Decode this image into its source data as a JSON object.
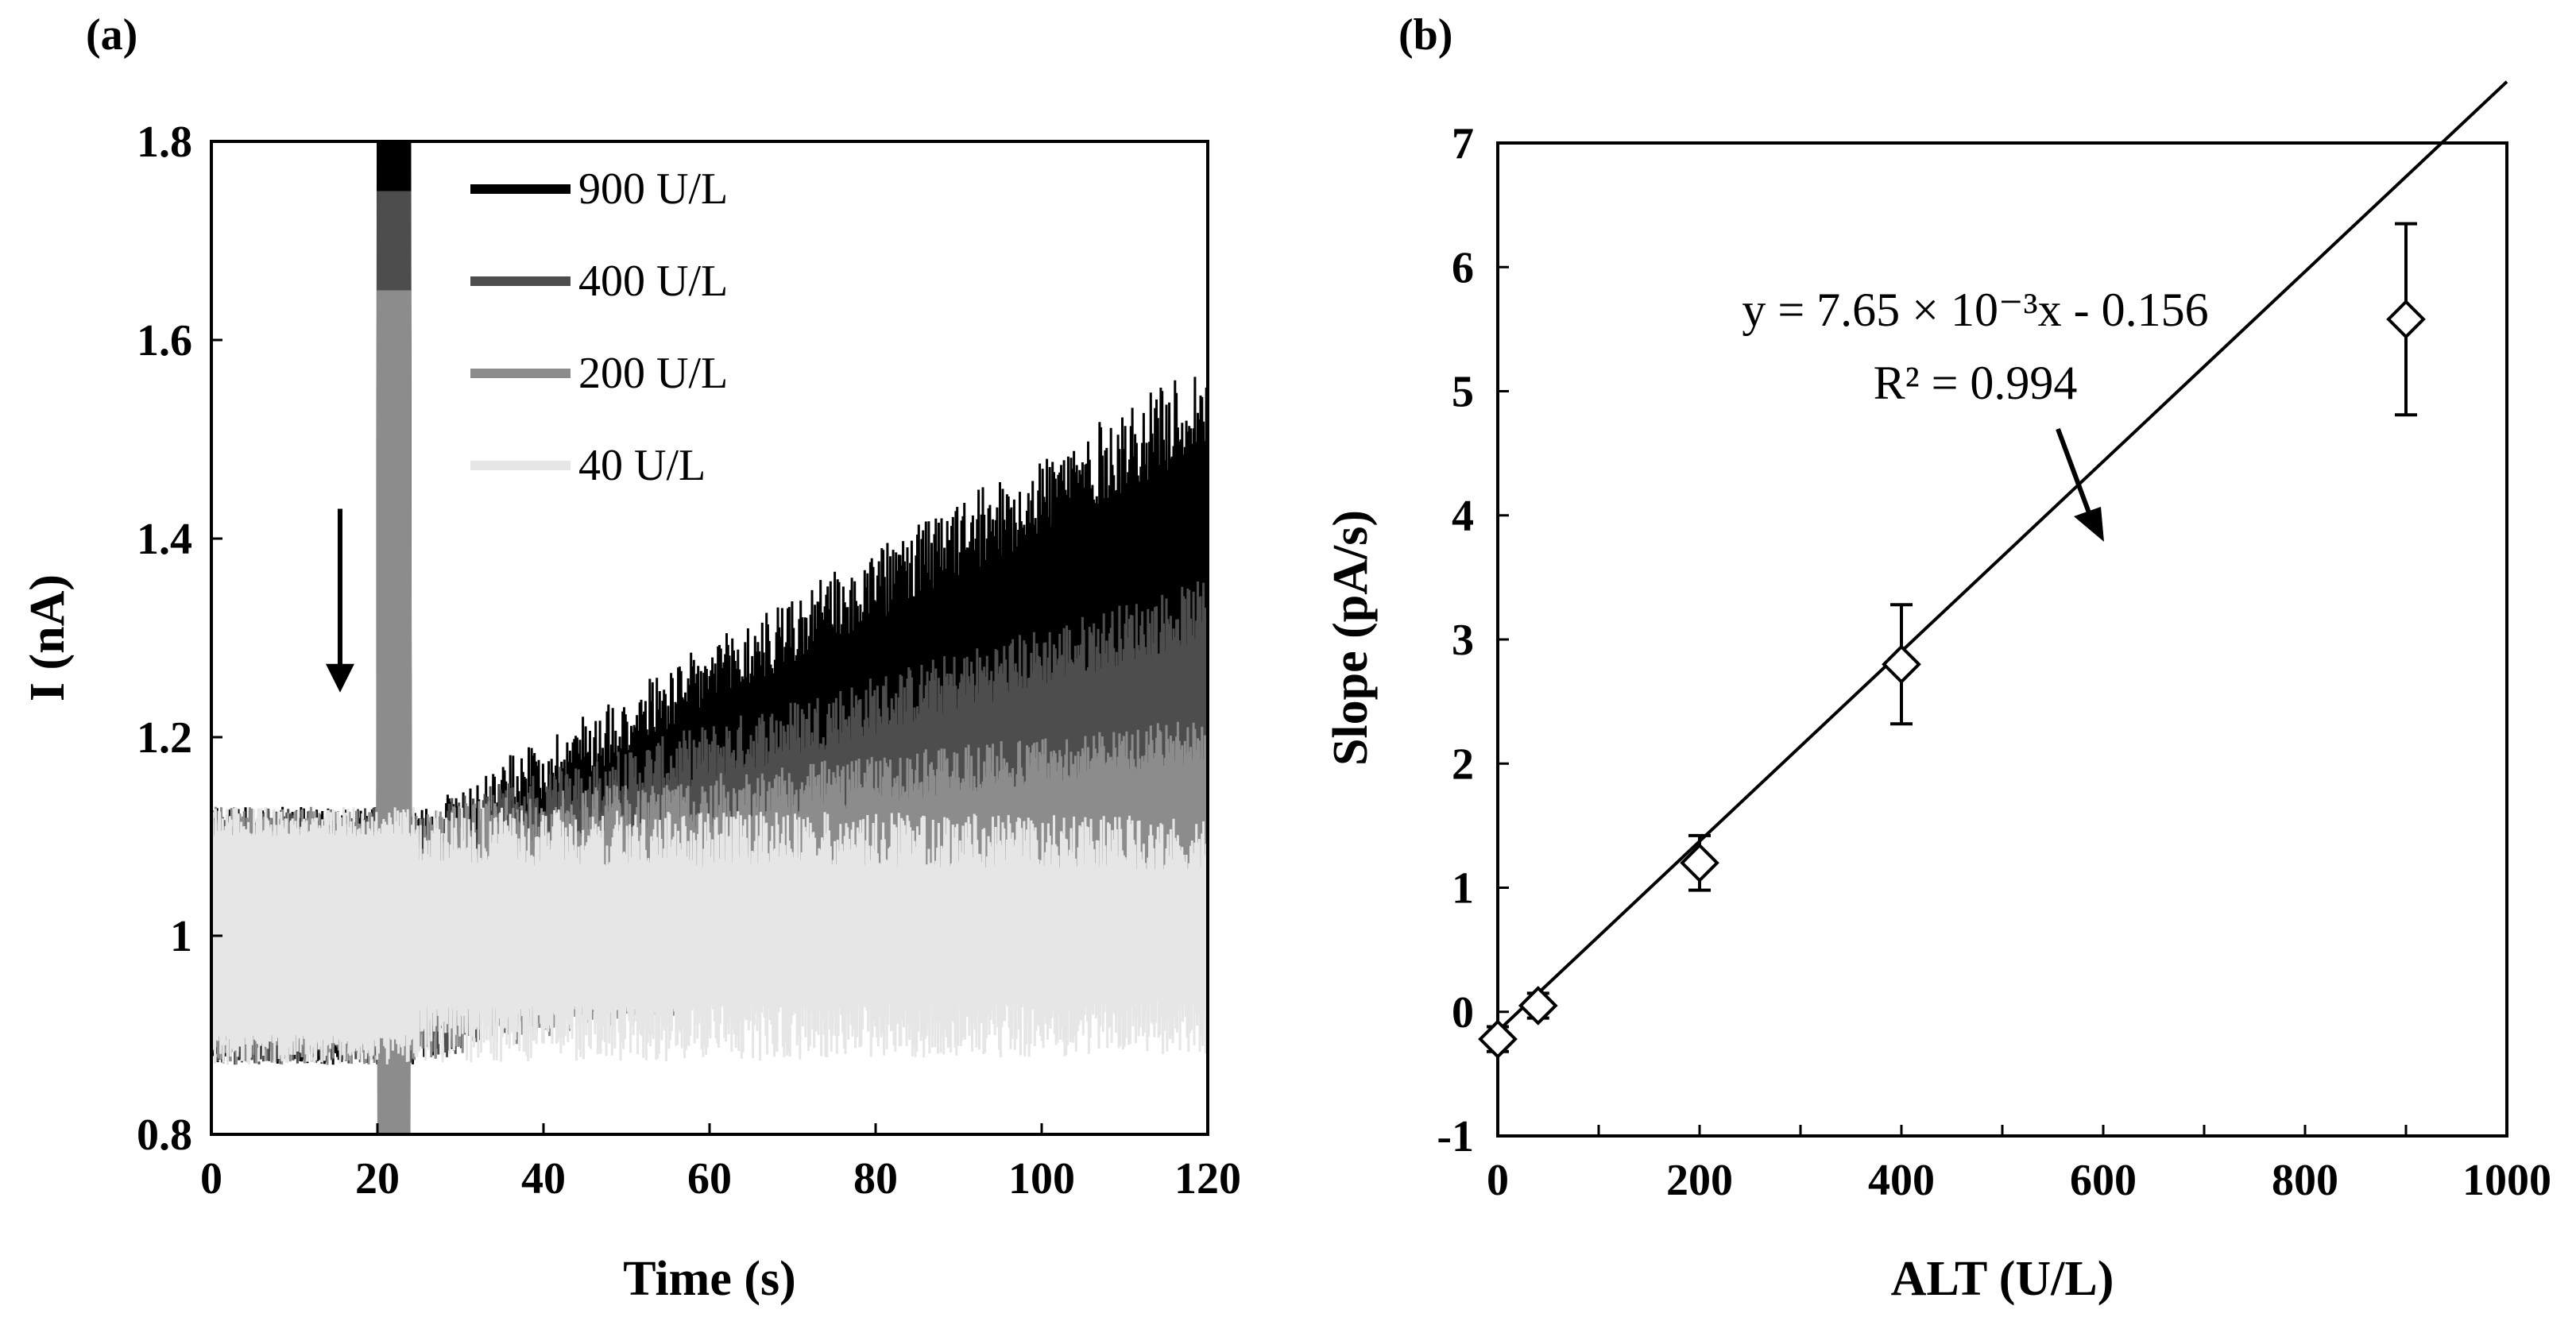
{
  "figure": {
    "panel_a_label": "(a)",
    "panel_b_label": "(b)"
  },
  "chart_data": [
    {
      "panel": "(a)",
      "type": "line",
      "xlabel": "Time (s)",
      "ylabel": "I (nA)",
      "xlim": [
        0,
        120
      ],
      "ylim": [
        0.8,
        1.8
      ],
      "xticks": [
        "0",
        "20",
        "40",
        "60",
        "80",
        "100",
        "120"
      ],
      "yticks": [
        "0.8",
        "1",
        "1.2",
        "1.4",
        "1.6",
        "1.8"
      ],
      "legend_position": "top-center",
      "injection_arrow_time": 15.5,
      "series": [
        {
          "name": "900 U/L",
          "color": "#000000",
          "baseline": 1.0,
          "final_mean": 1.38,
          "upper_start": 1.13,
          "upper_end": 1.58
        },
        {
          "name": "400 U/L",
          "color": "#4d4d4d",
          "baseline": 1.0,
          "final_mean": 1.22,
          "upper_start": 1.13,
          "upper_end": 1.36
        },
        {
          "name": "200 U/L",
          "color": "#8c8c8c",
          "baseline": 1.0,
          "final_mean": 1.12,
          "upper_start": 1.13,
          "upper_end": 1.22
        },
        {
          "name": "40 U/L",
          "color": "#e6e6e6",
          "baseline": 1.0,
          "final_mean": 1.0,
          "upper_start": 1.13,
          "upper_end": 1.12
        }
      ]
    },
    {
      "panel": "(b)",
      "type": "scatter",
      "xlabel": "ALT (U/L)",
      "ylabel": "Slope (pA/s)",
      "xlim": [
        0,
        1000
      ],
      "ylim": [
        -1,
        7
      ],
      "xticks": [
        "0",
        "200",
        "400",
        "600",
        "800",
        "1000"
      ],
      "yticks": [
        "-1",
        "0",
        "1",
        "2",
        "3",
        "4",
        "5",
        "6",
        "7"
      ],
      "x": [
        0,
        40,
        200,
        400,
        900
      ],
      "y": [
        -0.22,
        0.05,
        1.2,
        2.8,
        5.58
      ],
      "error": [
        0.1,
        0.1,
        0.22,
        0.48,
        0.77
      ],
      "fit": {
        "slope": 0.00765,
        "intercept": -0.156
      },
      "equation_text": "y = 7.65 × 10⁻³x - 0.156",
      "r2_text": "R² = 0.994",
      "marker": "open-diamond"
    }
  ]
}
